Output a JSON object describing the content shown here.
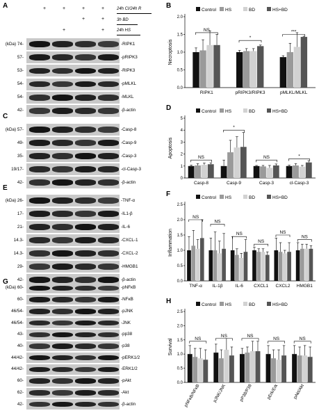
{
  "panels": {
    "A": "A",
    "B": "B",
    "C": "C",
    "D": "D",
    "E": "E",
    "F": "F",
    "G": "G",
    "H": "H"
  },
  "conditions": {
    "ci": "24h CI/24h R",
    "bd": "3h BD",
    "hs": "24h HS",
    "plus": "+"
  },
  "legend": [
    "Control",
    "HS",
    "BD",
    "HS+BD"
  ],
  "colors": {
    "control": "#111111",
    "hs": "#9a9a9a",
    "bd": "#d2d2d2",
    "hsbd": "#555555"
  },
  "blot_A": [
    {
      "mw": "(kDa) 74-",
      "protein": "-RIPK1"
    },
    {
      "mw": "57-",
      "protein": "-pRIPK3"
    },
    {
      "mw": "53-",
      "protein": "-RIPK3"
    },
    {
      "mw": "54-",
      "protein": "-pMLKL"
    },
    {
      "mw": "54-",
      "protein": "-MLKL"
    },
    {
      "mw": "42-",
      "protein": "-β-actin"
    }
  ],
  "blot_C": [
    {
      "mw": "(kDa) 57-",
      "protein": "-Casp-8"
    },
    {
      "mw": "49-",
      "protein": "-Casp-9"
    },
    {
      "mw": "35-",
      "protein": "-Casp-3"
    },
    {
      "mw": "19/17-",
      "protein": "-cl-Casp-3"
    },
    {
      "mw": "42-",
      "protein": "-β-actin"
    }
  ],
  "blot_E": [
    {
      "mw": "(kDa) 26-",
      "protein": "-TNF-α"
    },
    {
      "mw": "17-",
      "protein": "-IL1-β"
    },
    {
      "mw": "21-",
      "protein": "-IL-6"
    },
    {
      "mw": "14.3-",
      "protein": "-CXCL-1"
    },
    {
      "mw": "14.3-",
      "protein": "-CXCL-2"
    },
    {
      "mw": "29-",
      "protein": "-HMGB1"
    },
    {
      "mw": "42-",
      "protein": "-β-actin"
    }
  ],
  "blot_G": [
    {
      "mw": "(kDa) 60-",
      "protein": "-pNFκB"
    },
    {
      "mw": "60-",
      "protein": "-NFκB"
    },
    {
      "mw": "46/54-",
      "protein": "-pJNK"
    },
    {
      "mw": "46/54-",
      "protein": "-JNK"
    },
    {
      "mw": "43-",
      "protein": "-pp38"
    },
    {
      "mw": "40-",
      "protein": "-p38"
    },
    {
      "mw": "44/42-",
      "protein": "-pERK1/2"
    },
    {
      "mw": "44/42-",
      "protein": "-ERK1/2"
    },
    {
      "mw": "60-",
      "protein": "-pAkt"
    },
    {
      "mw": "62-",
      "protein": "-Akt"
    },
    {
      "mw": "42-",
      "protein": "-β-actin"
    }
  ],
  "chart_data": [
    {
      "id": "B",
      "type": "bar",
      "ylabel": "Necroptosis",
      "ylim": [
        0,
        2.0
      ],
      "yticks": [
        0,
        0.5,
        1.0,
        1.5,
        2.0
      ],
      "categories": [
        "RIPK1",
        "pRIPK3/RIPK3",
        "pMLKL/MLKL"
      ],
      "series": [
        {
          "name": "Control",
          "values": [
            1.0,
            1.0,
            0.86
          ],
          "err": [
            0.12,
            0.05,
            0.04
          ]
        },
        {
          "name": "HS",
          "values": [
            1.05,
            1.03,
            1.0
          ],
          "err": [
            0.3,
            0.07,
            0.25
          ]
        },
        {
          "name": "BD",
          "values": [
            1.2,
            1.03,
            1.15
          ],
          "err": [
            0.4,
            0.07,
            0.4
          ]
        },
        {
          "name": "HS+BD",
          "values": [
            1.2,
            1.17,
            1.43
          ],
          "err": [
            0.3,
            0.03,
            0.02
          ]
        }
      ],
      "sig": [
        {
          "from": 0,
          "to": 3,
          "cat": 0,
          "label": "NS",
          "y": 1.55
        },
        {
          "from": 0,
          "to": 3,
          "cat": 1,
          "label": "*",
          "y": 1.33
        },
        {
          "from": 0,
          "to": 3,
          "cat": 2,
          "label": "***",
          "y": 1.5
        }
      ]
    },
    {
      "id": "D",
      "type": "bar",
      "ylabel": "Apoptosis",
      "ylim": [
        0,
        5
      ],
      "yticks": [
        0,
        1,
        2,
        3,
        4,
        5
      ],
      "categories": [
        "Casp-8",
        "Casp-9",
        "Casp-3",
        "cl-Casp-3"
      ],
      "series": [
        {
          "name": "Control",
          "values": [
            1.0,
            1.0,
            1.0,
            1.0
          ],
          "err": [
            0.08,
            0.5,
            0.05,
            0.08
          ]
        },
        {
          "name": "HS",
          "values": [
            1.05,
            2.15,
            0.97,
            1.05
          ],
          "err": [
            0.15,
            1.0,
            0.08,
            0.15
          ]
        },
        {
          "name": "BD",
          "values": [
            1.1,
            2.55,
            0.85,
            0.95
          ],
          "err": [
            0.15,
            0.9,
            0.2,
            0.1
          ]
        },
        {
          "name": "HS+BD",
          "values": [
            1.15,
            2.6,
            1.05,
            1.3
          ],
          "err": [
            0.12,
            1.2,
            0.12,
            0.15
          ]
        }
      ],
      "sig": [
        {
          "cat": 0,
          "label": "NS",
          "y": 1.5
        },
        {
          "cat": 1,
          "label": "*",
          "y": 4.0
        },
        {
          "cat": 2,
          "label": "NS",
          "y": 1.5
        },
        {
          "cat": 3,
          "label": "*",
          "y": 1.6
        }
      ]
    },
    {
      "id": "F",
      "type": "bar",
      "ylabel": "Inflammation",
      "ylim": [
        0,
        2.5
      ],
      "yticks": [
        0,
        0.5,
        1.0,
        1.5,
        2.0,
        2.5
      ],
      "categories": [
        "TNF-α",
        "IL-1β",
        "IL-6",
        "CXCL1",
        "CXCL2",
        "HMGB1"
      ],
      "series": [
        {
          "name": "Control",
          "values": [
            1.0,
            1.0,
            1.0,
            1.0,
            1.0,
            1.0
          ],
          "err": [
            0.45,
            0.4,
            0.45,
            0.1,
            0.4,
            0.25
          ]
        },
        {
          "name": "HS",
          "values": [
            1.15,
            1.0,
            0.85,
            0.95,
            0.95,
            1.05
          ],
          "err": [
            0.5,
            0.6,
            0.2,
            0.1,
            0.3,
            0.15
          ]
        },
        {
          "name": "BD",
          "values": [
            1.05,
            0.9,
            0.75,
            0.95,
            0.9,
            1.05
          ],
          "err": [
            0.3,
            0.4,
            0.15,
            0.1,
            0.1,
            0.15
          ]
        },
        {
          "name": "HS+BD",
          "values": [
            1.4,
            1.05,
            0.95,
            0.85,
            0.95,
            1.05
          ],
          "err": [
            0.6,
            0.5,
            0.4,
            0.1,
            0.3,
            0.1
          ]
        }
      ],
      "sig": [
        {
          "cat": 0,
          "label": "NS",
          "y": 2.0
        },
        {
          "cat": 1,
          "label": "NS",
          "y": 1.85
        },
        {
          "cat": 2,
          "label": "NS",
          "y": 1.45
        },
        {
          "cat": 3,
          "label": "NS",
          "y": 1.2
        },
        {
          "cat": 4,
          "label": "NS",
          "y": 1.5
        },
        {
          "cat": 5,
          "label": "NS",
          "y": 1.35
        }
      ]
    },
    {
      "id": "H",
      "type": "bar",
      "ylabel": "Survival",
      "ylim": [
        0,
        2.5
      ],
      "yticks": [
        0,
        0.5,
        1.0,
        1.5,
        2.0,
        2.5
      ],
      "categories": [
        "pNFκB/NFκB",
        "pJNK/JNK",
        "pP38/P38",
        "pErk/Erk",
        "pAkt/Akt"
      ],
      "series": [
        {
          "name": "Control",
          "values": [
            1.0,
            1.05,
            1.0,
            1.0,
            1.0
          ],
          "err": [
            0.3,
            0.3,
            0.2,
            0.3,
            0.3
          ]
        },
        {
          "name": "HS",
          "values": [
            0.9,
            0.85,
            1.05,
            0.85,
            0.95
          ],
          "err": [
            0.3,
            0.3,
            0.2,
            0.3,
            0.3
          ]
        },
        {
          "name": "BD",
          "values": [
            0.85,
            1.15,
            1.1,
            0.8,
            0.95
          ],
          "err": [
            0.35,
            0.4,
            0.35,
            0.35,
            0.35
          ]
        },
        {
          "name": "HS+BD",
          "values": [
            0.8,
            0.95,
            1.1,
            0.95,
            0.9
          ],
          "err": [
            0.35,
            0.3,
            0.35,
            0.35,
            0.35
          ]
        }
      ],
      "sig": [
        {
          "cat": 0,
          "label": "NS",
          "y": 1.45
        },
        {
          "cat": 1,
          "label": "NS",
          "y": 1.55
        },
        {
          "cat": 2,
          "label": "NS",
          "y": 1.55
        },
        {
          "cat": 3,
          "label": "NS",
          "y": 1.45
        },
        {
          "cat": 4,
          "label": "NS",
          "y": 1.45
        }
      ]
    }
  ]
}
